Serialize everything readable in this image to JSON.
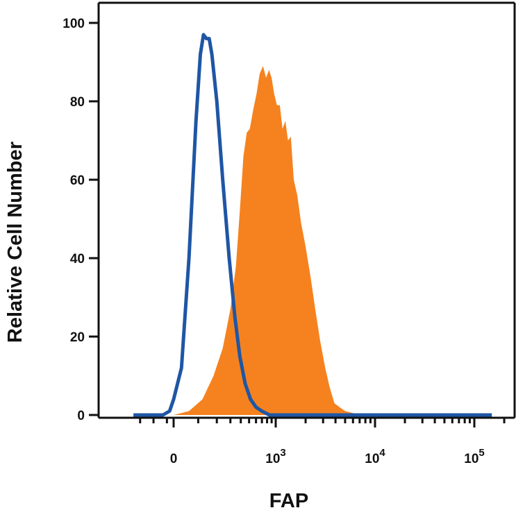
{
  "chart_data": {
    "type": "area",
    "xlabel": "FAP",
    "ylabel": "Relative Cell Number",
    "ylim": [
      0,
      100
    ],
    "x_scale": "biexponential",
    "x_ticks": [
      {
        "value": 0,
        "base": "0",
        "exp": ""
      },
      {
        "value": 1000,
        "base": "10",
        "exp": "3"
      },
      {
        "value": 10000,
        "base": "10",
        "exp": "4"
      },
      {
        "value": 100000,
        "base": "10",
        "exp": "5"
      }
    ],
    "y_ticks": [
      0,
      20,
      40,
      60,
      80,
      100
    ],
    "grid": false,
    "series": [
      {
        "style": "outline",
        "color": "#1f56a5",
        "points": [
          [
            -300,
            0
          ],
          [
            -80,
            0
          ],
          [
            -30,
            1
          ],
          [
            0,
            4
          ],
          [
            30,
            12
          ],
          [
            60,
            40
          ],
          [
            90,
            75
          ],
          [
            110,
            92
          ],
          [
            125,
            97
          ],
          [
            140,
            96
          ],
          [
            155,
            96
          ],
          [
            170,
            92
          ],
          [
            200,
            80
          ],
          [
            240,
            60
          ],
          [
            290,
            40
          ],
          [
            340,
            25
          ],
          [
            390,
            15
          ],
          [
            450,
            8
          ],
          [
            520,
            4
          ],
          [
            600,
            2
          ],
          [
            700,
            1
          ],
          [
            850,
            0
          ],
          [
            150000,
            0
          ]
        ]
      },
      {
        "style": "filled",
        "color": "#f5821f",
        "points": [
          [
            -300,
            0
          ],
          [
            0,
            0
          ],
          [
            60,
            1
          ],
          [
            120,
            4
          ],
          [
            180,
            10
          ],
          [
            240,
            17
          ],
          [
            300,
            27
          ],
          [
            350,
            38
          ],
          [
            390,
            52
          ],
          [
            430,
            66
          ],
          [
            470,
            72
          ],
          [
            510,
            73
          ],
          [
            560,
            78
          ],
          [
            610,
            82
          ],
          [
            660,
            87
          ],
          [
            720,
            89
          ],
          [
            780,
            86
          ],
          [
            840,
            88
          ],
          [
            900,
            86
          ],
          [
            960,
            82
          ],
          [
            1030,
            79
          ],
          [
            1100,
            79
          ],
          [
            1170,
            73
          ],
          [
            1250,
            75
          ],
          [
            1330,
            70
          ],
          [
            1420,
            71
          ],
          [
            1520,
            60
          ],
          [
            1650,
            56
          ],
          [
            1800,
            49
          ],
          [
            2000,
            43
          ],
          [
            2250,
            35
          ],
          [
            2500,
            27
          ],
          [
            2800,
            19
          ],
          [
            3150,
            12
          ],
          [
            3500,
            7
          ],
          [
            3900,
            3
          ],
          [
            4400,
            2
          ],
          [
            5000,
            1
          ],
          [
            6000,
            0.5
          ],
          [
            8000,
            0
          ],
          [
            150000,
            0
          ]
        ]
      }
    ]
  }
}
